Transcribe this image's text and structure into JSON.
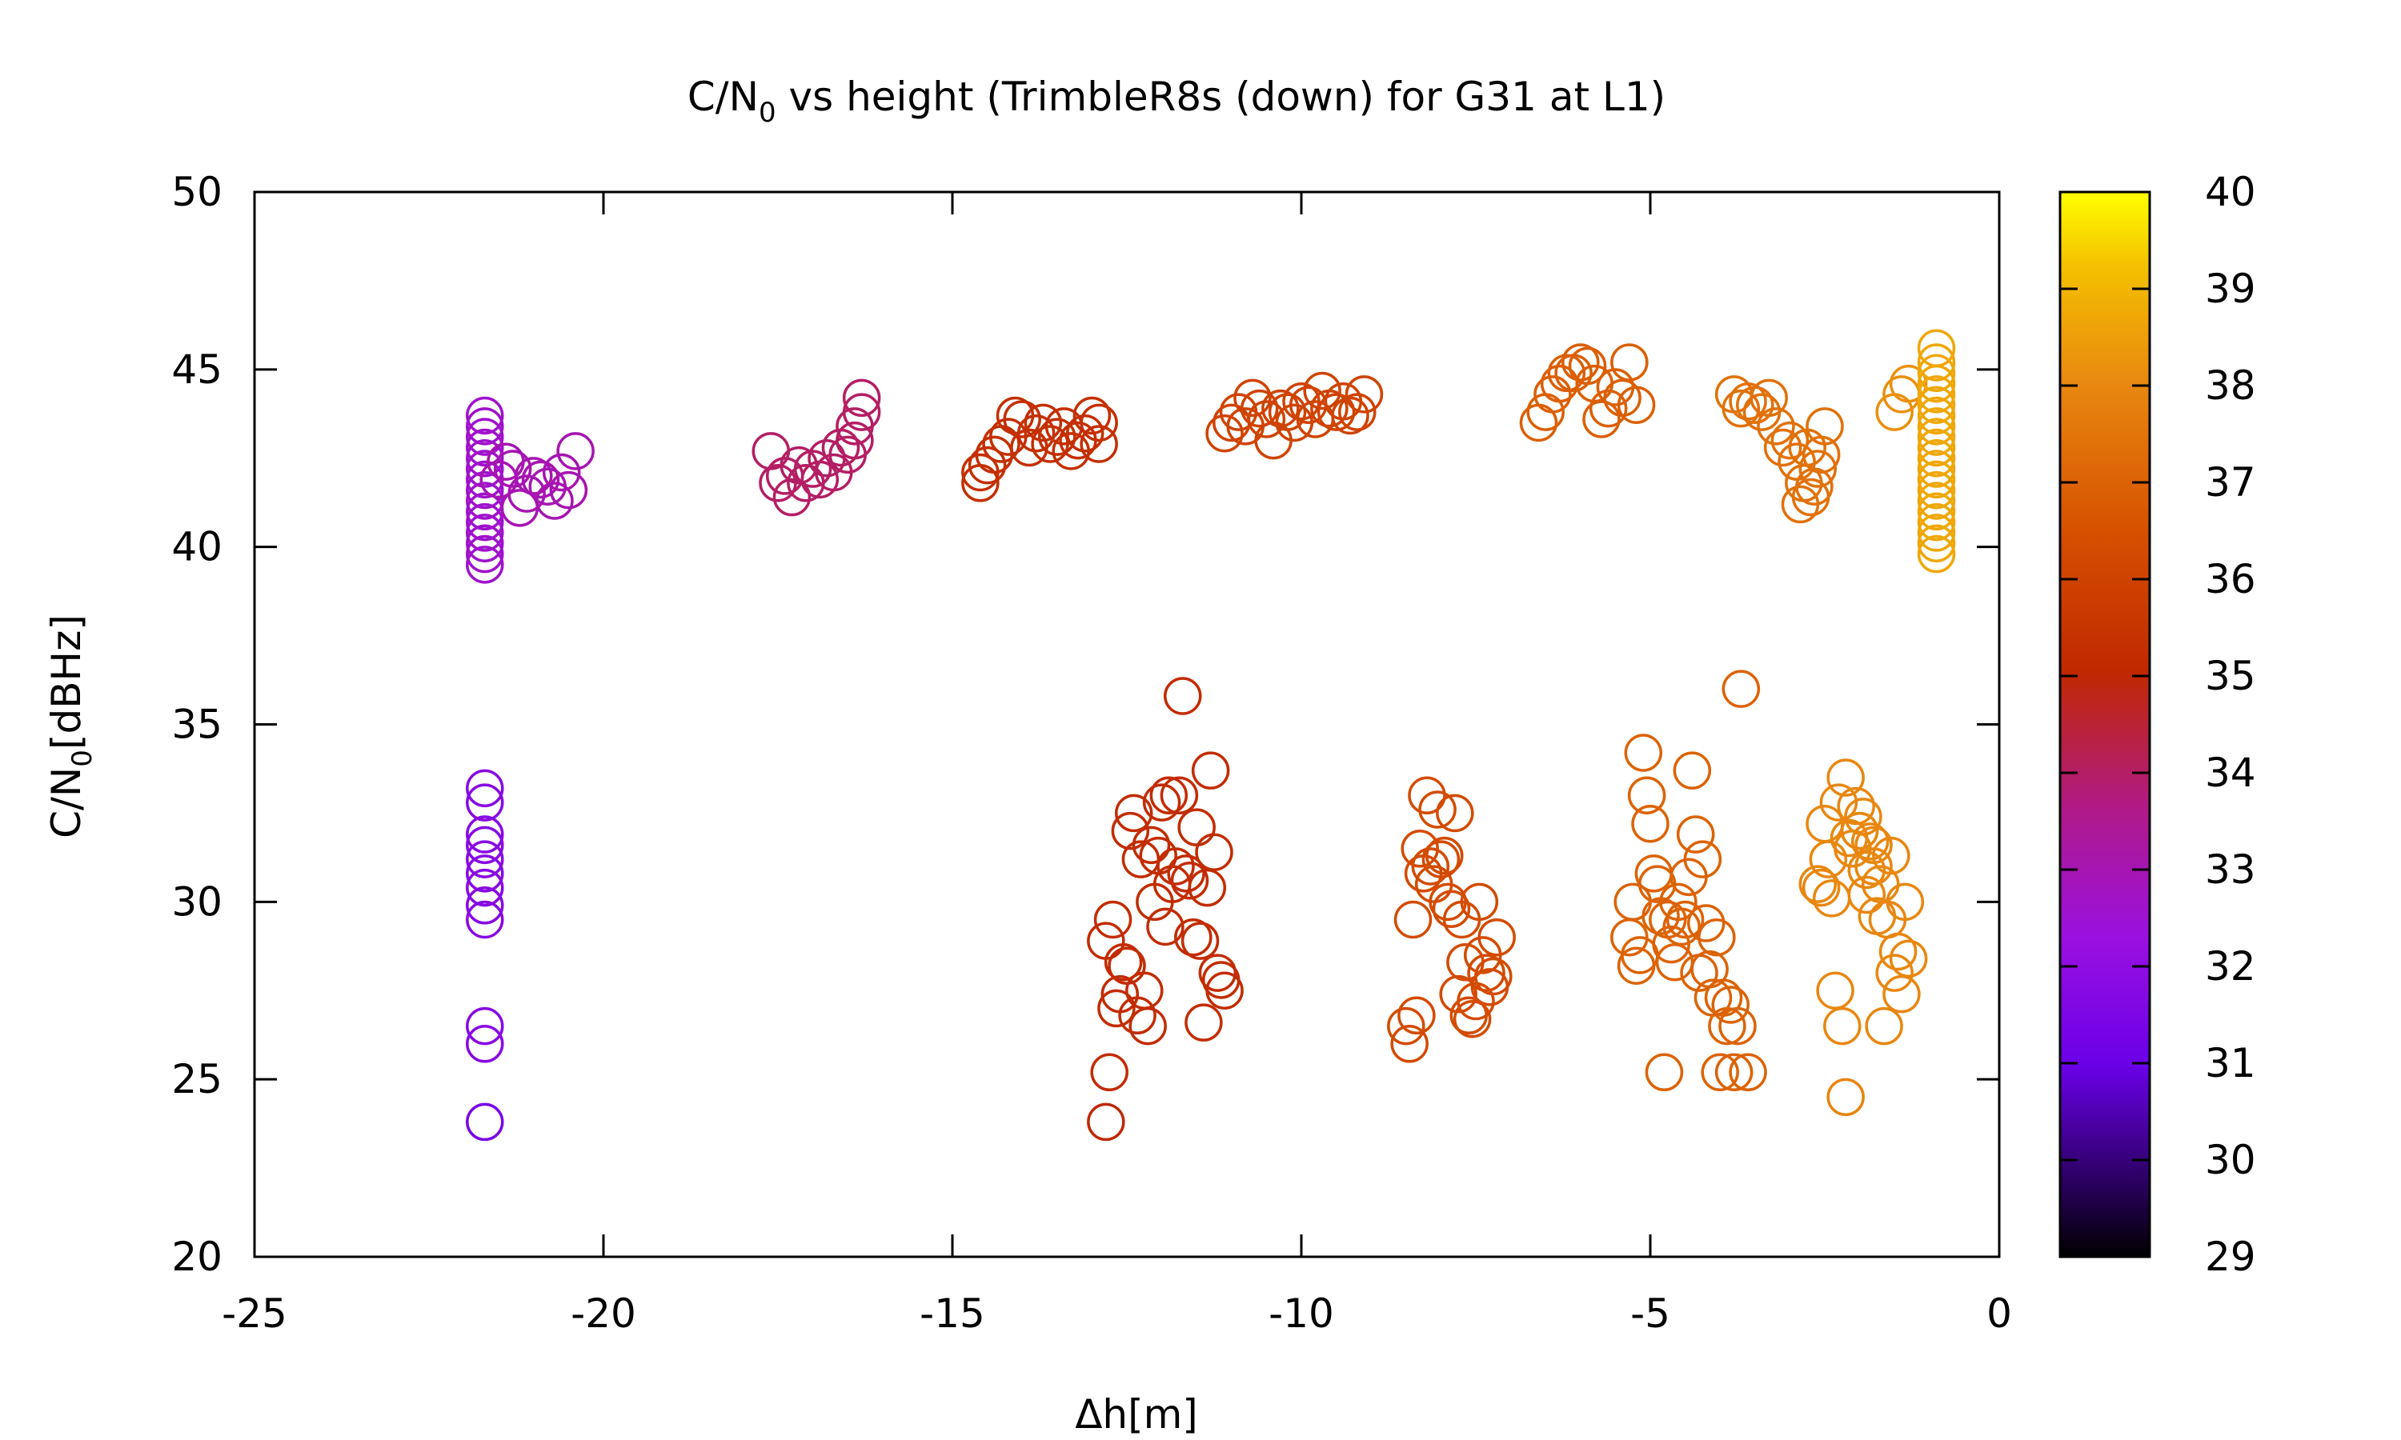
{
  "chart_data": {
    "type": "scatter",
    "title": {
      "main": "C/N",
      "sub": "0",
      "rest": " vs height (TrimbleR8s (down) for G31 at L1)"
    },
    "xlabel": "Δh[m]",
    "ylabel": {
      "main": "C/N",
      "sub": "0",
      "rest": "[dBHz]"
    },
    "xlim": [
      -25,
      0
    ],
    "ylim": [
      20,
      50
    ],
    "xticks": [
      "-25",
      "-20",
      "-15",
      "-10",
      "-5",
      "0"
    ],
    "yticks": [
      "20",
      "25",
      "30",
      "35",
      "40",
      "45",
      "50"
    ],
    "colorbar": {
      "range": [
        29,
        40
      ],
      "ticks": [
        "29",
        "30",
        "31",
        "32",
        "33",
        "34",
        "35",
        "36",
        "37",
        "38",
        "39",
        "40"
      ],
      "palette": "black-purple-red-orange-yellow"
    },
    "marker": "open-circle",
    "grid": false,
    "clusters": [
      {
        "x": -21.7,
        "y": [
          39.5,
          39.8,
          40.1,
          40.4,
          40.7,
          41.0,
          41.3,
          41.6,
          41.9,
          42.2,
          42.5,
          42.8,
          43.1,
          43.4,
          43.7
        ],
        "c": 32.6
      },
      {
        "x": [
          -21.5,
          -21.3,
          -21.1,
          -20.9,
          -20.7,
          -20.5,
          -21.4,
          -21.2,
          -21.0,
          -20.8,
          -20.6,
          -20.4
        ],
        "y": [
          41.9,
          42.2,
          41.5,
          41.9,
          41.3,
          41.6,
          42.4,
          41.1,
          42.0,
          41.7,
          42.1,
          42.7
        ],
        "c": 33.0
      },
      {
        "x": [
          -21.7,
          -21.7,
          -21.7,
          -21.7,
          -21.7,
          -21.7,
          -21.7,
          -21.7,
          -21.7,
          -21.7,
          -21.7
        ],
        "y": [
          33.2,
          32.8,
          31.9,
          31.6,
          31.2,
          30.8,
          30.4,
          29.9,
          29.5,
          26.5,
          26.0
        ],
        "c": 31.8
      },
      {
        "x": [
          -21.7
        ],
        "y": [
          23.8
        ],
        "c": 31.4
      },
      {
        "x": [
          -17.6,
          -17.4,
          -17.3,
          -17.1,
          -17.0,
          -16.8,
          -16.7,
          -16.5,
          -16.4,
          -16.3,
          -17.5,
          -17.2,
          -16.9,
          -16.6,
          -16.4,
          -16.3
        ],
        "y": [
          42.7,
          42.0,
          41.4,
          41.8,
          42.2,
          42.5,
          42.1,
          42.6,
          43.4,
          44.2,
          41.8,
          42.3,
          41.9,
          42.8,
          43.0,
          43.8
        ],
        "c": 34.0
      },
      {
        "x": [
          -14.6,
          -14.4,
          -14.2,
          -14.0,
          -13.8,
          -13.6,
          -13.4,
          -13.2,
          -13.0,
          -12.9,
          -14.5,
          -14.3,
          -14.1,
          -13.9,
          -13.7,
          -13.5,
          -13.3,
          -13.1,
          -12.9,
          -14.6
        ],
        "y": [
          41.8,
          42.6,
          43.1,
          43.6,
          43.2,
          42.9,
          43.4,
          43.0,
          43.7,
          43.5,
          42.3,
          42.9,
          43.7,
          42.8,
          43.5,
          43.1,
          42.7,
          43.2,
          42.9,
          42.1
        ],
        "c": 35.3
      },
      {
        "x": [
          -11.1,
          -10.9,
          -10.7,
          -10.5,
          -10.3,
          -10.1,
          -9.9,
          -9.7,
          -9.5,
          -9.3,
          -9.1,
          -11.0,
          -10.8,
          -10.6,
          -10.4,
          -10.2,
          -10.0,
          -9.8,
          -9.6,
          -9.4,
          -9.2
        ],
        "y": [
          43.2,
          43.8,
          44.2,
          43.6,
          43.9,
          43.5,
          44.0,
          44.4,
          43.8,
          43.7,
          44.3,
          43.5,
          43.4,
          43.9,
          43.0,
          43.8,
          44.1,
          43.6,
          43.9,
          44.1,
          43.8
        ],
        "c": 36.0
      },
      {
        "x": [
          -6.6,
          -6.4,
          -6.2,
          -6.0,
          -5.8,
          -5.6,
          -5.4,
          -5.3,
          -6.5,
          -6.3,
          -6.1,
          -5.9,
          -5.7,
          -5.5,
          -5.2
        ],
        "y": [
          43.5,
          44.3,
          44.9,
          45.2,
          44.6,
          43.9,
          44.2,
          45.2,
          43.8,
          44.6,
          44.9,
          45.1,
          43.6,
          44.5,
          44.0
        ],
        "c": 36.9
      },
      {
        "x": [
          -3.8,
          -3.6,
          -3.4,
          -3.2,
          -3.0,
          -2.9,
          -2.8,
          -2.7,
          -2.6,
          -2.5,
          -3.7,
          -3.5,
          -3.3,
          -3.1,
          -2.85,
          -2.75,
          -2.65,
          -2.55
        ],
        "y": [
          44.3,
          44.1,
          43.8,
          43.4,
          43.0,
          42.4,
          41.8,
          41.4,
          42.2,
          43.4,
          43.9,
          44.0,
          44.2,
          42.8,
          41.2,
          42.8,
          41.7,
          42.6
        ],
        "c": 37.4
      },
      {
        "x": [
          -1.5,
          -1.4,
          -1.3
        ],
        "y": [
          43.8,
          44.3,
          44.6
        ],
        "c": 38.2
      },
      {
        "x": -0.9,
        "y": [
          39.8,
          40.1,
          40.4,
          40.7,
          41.0,
          41.3,
          41.6,
          41.9,
          42.2,
          42.5,
          42.8,
          43.1,
          43.4,
          43.7,
          44.0,
          44.3,
          44.6,
          44.9,
          45.2,
          45.6
        ],
        "c": 38.7
      },
      {
        "x": [
          -12.8,
          -12.7,
          -12.6,
          -12.5,
          -12.4,
          -12.3,
          -12.2,
          -12.1,
          -12.0,
          -11.9,
          -11.8,
          -11.7,
          -11.6,
          -11.5,
          -11.4,
          -11.3,
          -11.2,
          -11.1,
          -12.75,
          -12.55,
          -12.35,
          -12.15,
          -11.95,
          -11.75,
          -11.55,
          -11.35,
          -11.15,
          -12.65,
          -12.45,
          -12.25,
          -12.05,
          -11.85,
          -11.65,
          -11.45,
          -11.25
        ],
        "y": [
          28.9,
          29.5,
          27.4,
          28.2,
          32.5,
          31.2,
          26.5,
          30.0,
          32.8,
          33.0,
          31.0,
          35.8,
          30.6,
          32.1,
          26.6,
          33.7,
          28.0,
          27.5,
          25.2,
          28.3,
          26.8,
          31.6,
          29.3,
          33.0,
          29.0,
          30.4,
          27.8,
          27.0,
          32.0,
          27.5,
          31.3,
          30.5,
          30.8,
          28.9,
          31.4
        ],
        "c": 35.2
      },
      {
        "x": [
          -12.8
        ],
        "y": [
          23.8
        ],
        "c": 35.0
      },
      {
        "x": [
          -8.5,
          -8.4,
          -8.3,
          -8.2,
          -8.1,
          -8.0,
          -7.9,
          -7.8,
          -7.7,
          -7.6,
          -7.5,
          -7.4,
          -7.3,
          -7.2,
          -8.45,
          -8.25,
          -8.05,
          -7.85,
          -7.65,
          -7.45,
          -7.25,
          -8.35,
          -8.15,
          -7.95,
          -7.75,
          -7.55,
          -7.35
        ],
        "y": [
          26.5,
          29.5,
          31.5,
          33.0,
          30.5,
          31.2,
          30.0,
          32.5,
          29.5,
          26.8,
          27.2,
          28.5,
          27.6,
          29.0,
          26.0,
          30.8,
          32.6,
          29.8,
          28.3,
          30.0,
          27.9,
          26.8,
          31.0,
          31.3,
          27.4,
          26.7,
          28.0
        ],
        "c": 36.3
      },
      {
        "x": [
          -5.3,
          -5.2,
          -5.1,
          -5.0,
          -4.9,
          -4.8,
          -4.7,
          -4.6,
          -4.5,
          -4.4,
          -4.3,
          -4.2,
          -4.1,
          -4.0,
          -3.9,
          -3.8,
          -3.7,
          -3.6,
          -5.25,
          -5.05,
          -4.85,
          -4.65,
          -4.45,
          -4.25,
          -4.05,
          -3.85,
          -5.15,
          -4.95,
          -4.75,
          -4.55,
          -4.35,
          -4.15,
          -3.95,
          -3.75
        ],
        "y": [
          29.0,
          28.2,
          34.2,
          32.2,
          30.5,
          25.2,
          28.8,
          30.0,
          29.5,
          33.7,
          28.0,
          29.4,
          27.3,
          25.2,
          26.5,
          25.2,
          36.0,
          25.2,
          30.0,
          33.0,
          29.6,
          28.3,
          30.7,
          31.2,
          29.0,
          27.1,
          28.5,
          30.8,
          29.5,
          29.3,
          31.9,
          28.1,
          27.3,
          26.5
        ],
        "c": 37.0
      },
      {
        "x": [
          -2.6,
          -2.5,
          -2.4,
          -2.3,
          -2.2,
          -2.1,
          -2.0,
          -1.9,
          -1.8,
          -1.7,
          -1.6,
          -1.5,
          -1.4,
          -1.3,
          -2.55,
          -2.35,
          -2.15,
          -1.95,
          -1.75,
          -1.55,
          -1.35,
          -2.45,
          -2.25,
          -2.05,
          -1.85,
          -1.65,
          -1.45,
          -2.0,
          -1.9,
          -1.8
        ],
        "y": [
          30.5,
          32.2,
          30.1,
          32.8,
          33.5,
          31.5,
          32.0,
          30.9,
          31.6,
          30.5,
          29.5,
          28.0,
          27.4,
          28.4,
          30.4,
          27.5,
          31.8,
          32.4,
          29.6,
          31.3,
          30.0,
          31.2,
          26.5,
          32.7,
          31.7,
          26.5,
          28.6,
          32.0,
          30.2,
          31.0
        ],
        "c": 38.0
      },
      {
        "x": [
          -2.2
        ],
        "y": [
          24.5
        ],
        "c": 37.9
      }
    ]
  }
}
